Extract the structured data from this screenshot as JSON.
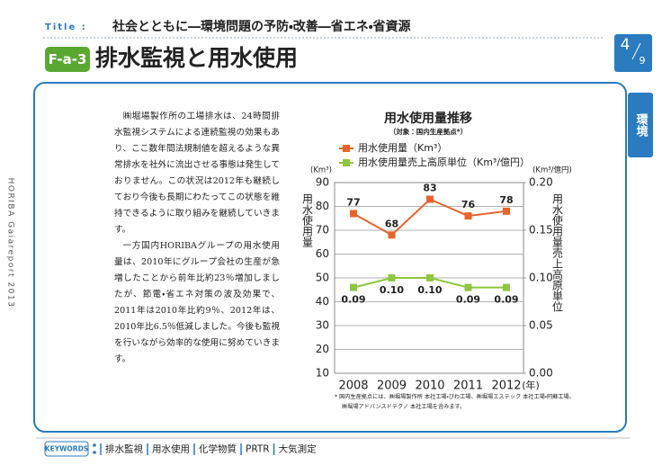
{
  "header": {
    "label": "Title :",
    "title": "社会とともに―環境問題の予防・改善―省エネ・省資源",
    "code": "F-a-3",
    "heading": "排水監視と用水使用",
    "page": "4",
    "pages": "9"
  },
  "side_tab": "環境",
  "side_text": "HORIBA Gaiareport 2013",
  "body": {
    "paragraphs": [
      "㈱堀場製作所の工場排水は、24時間排水監視システムによる連続監視の効果もあり、ここ数年間法規制値を超えるような異常排水を社外に流出させる事態は発生しておりません。この状況は2012年も継続しており今後も長期にわたってこの状態を維持できるように取り組みを継続していきます。",
      "一方国内HORIBAグループの用水使用量は、2010年にグループ会社の生産が急増したことから前年比約23％増加しましたが、節電・省エネ対策の波及効果で、2011年は2010年比約9％、2012年は、2010年比6.5％低減しました。今後も監視を行いながら効率的な使用に努めていきます。"
    ]
  },
  "chart_data": {
    "type": "line",
    "title": "用水使用量推移",
    "subtitle": "（対象：国内生産拠点*）",
    "categories": [
      "2008",
      "2009",
      "2010",
      "2011",
      "2012"
    ],
    "xlabel": "(年)",
    "ylabel": "用水使用量",
    "y_unit": "(Km³)",
    "y2label": "用水使用量売上高原単位",
    "y2_unit": "(Km³/億円)",
    "ylim": [
      10,
      90
    ],
    "yticks": [
      10,
      20,
      30,
      40,
      50,
      60,
      70,
      80,
      90
    ],
    "y2lim": [
      0,
      0.2
    ],
    "y2ticks": [
      {
        "value": 0,
        "label": "0.00"
      },
      0.05,
      {
        "value": 0.1,
        "label": "0.10"
      },
      0.15,
      {
        "value": 0.2,
        "label": "0.20"
      }
    ],
    "grid": true,
    "legend": "top",
    "series": [
      {
        "name": "用水使用量（Km³）",
        "color": "#e8632a",
        "values": [
          77,
          68,
          83,
          76,
          78
        ]
      },
      {
        "name": "用水使用量売上高原単位（Km³/億円）",
        "color": "#8dc63f",
        "axis": "y2",
        "values": [
          0.09,
          0.1,
          0.1,
          0.09,
          0.09
        ],
        "value_labels": [
          "0.09",
          "0.10",
          "0.10",
          "0.09",
          "0.09"
        ]
      }
    ],
    "footnote": [
      "* 国内生産拠点には、㈱堀場製作所 本社工場・びわ工場、㈱堀場エステック 本社工場・阿蘇工場、",
      "㈱堀場アドバンスドテクノ 本社工場を含みます。"
    ]
  },
  "keywords": {
    "label": "KEYWORDS",
    "items": [
      "排水監視",
      "用水使用",
      "化学物質",
      "PRTR",
      "大気測定"
    ]
  }
}
